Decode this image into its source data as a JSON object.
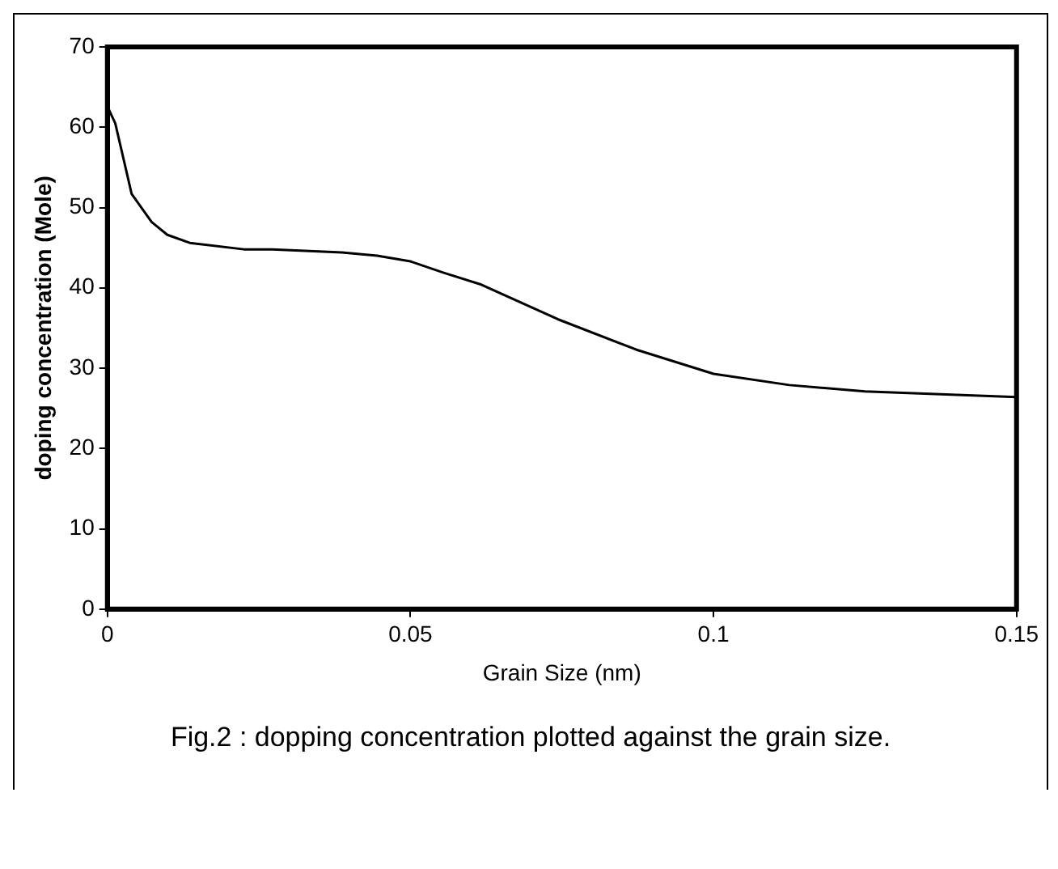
{
  "chart_data": {
    "type": "line",
    "xlabel": "Grain Size (nm)",
    "ylabel": "doping concentration (Mole)",
    "annotations": [
      "Fig.2 : dopping concentration plotted against the grain size."
    ],
    "x": [
      0,
      0.0013,
      0.0021,
      0.0033,
      0.004,
      0.0073,
      0.0099,
      0.0136,
      0.0225,
      0.0272,
      0.0387,
      0.0445,
      0.05,
      0.0554,
      0.0617,
      0.0743,
      0.0873,
      0.1,
      0.1125,
      0.125,
      0.15
    ],
    "series": [
      {
        "color": "#000000",
        "values": [
          62.6,
          60.5,
          57.9,
          54.0,
          51.7,
          48.2,
          46.6,
          45.6,
          44.8,
          44.8,
          44.4,
          44.0,
          43.3,
          41.9,
          40.4,
          36.1,
          32.3,
          29.3,
          27.9,
          27.1,
          26.4
        ]
      }
    ],
    "xlim": [
      0,
      0.15
    ],
    "xticks": [
      0,
      0.05,
      0.1,
      0.15
    ],
    "ylim": [
      0,
      70
    ],
    "yticks": [
      0,
      10,
      20,
      30,
      40,
      50,
      60,
      70
    ],
    "legend": false
  }
}
